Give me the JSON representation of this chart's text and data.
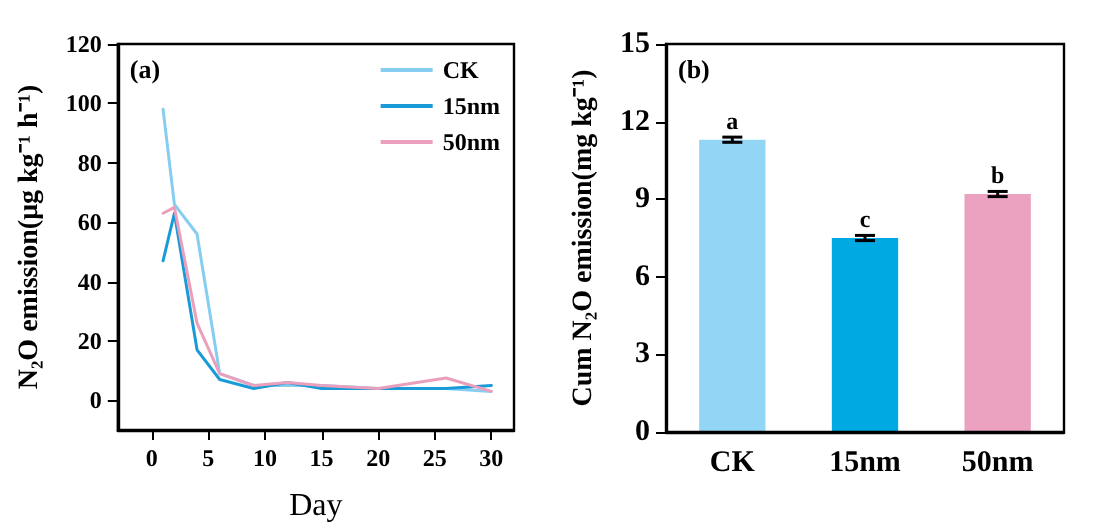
{
  "chart_data": [
    {
      "type": "line",
      "xlabel": "Day",
      "ylabel": "N₂O emission(μg kg⁻¹ h⁻¹)",
      "annotations": [
        "(a)"
      ],
      "x": [
        1,
        2,
        4,
        6,
        9,
        12,
        15,
        20,
        26,
        30
      ],
      "series": [
        {
          "name": "CK",
          "color": "#86cdf0",
          "values": [
            98,
            66,
            56,
            9,
            5,
            5,
            5,
            4,
            4,
            3
          ]
        },
        {
          "name": "15nm",
          "color": "#1a9ad6",
          "values": [
            47,
            63,
            17,
            7,
            4,
            6,
            4,
            4,
            4,
            5
          ]
        },
        {
          "name": "50nm",
          "color": "#eaa0bc",
          "values": [
            63,
            65,
            26,
            9,
            5,
            6,
            5,
            4,
            7.5,
            3
          ]
        }
      ],
      "xlim": [
        -3,
        32
      ],
      "xticks": [
        0,
        5,
        10,
        15,
        20,
        25,
        30
      ],
      "ylim": [
        -10,
        120
      ],
      "yticks": [
        0,
        20,
        40,
        60,
        80,
        100,
        120
      ],
      "grid": false,
      "legend": "top right"
    },
    {
      "type": "bar",
      "ylabel": "Cum N₂O emission(mg kg⁻¹)",
      "categories": [
        "CK",
        "15nm",
        "50nm"
      ],
      "values": [
        11.3,
        7.5,
        9.2
      ],
      "errors": [
        0.1,
        0.1,
        0.1
      ],
      "colors": [
        "#93d5f5",
        "#00a9e2",
        "#eba1c0"
      ],
      "annotations": [
        "(b)",
        {
          "text": "a",
          "x": "CK",
          "y": 11.4
        },
        {
          "text": "c",
          "x": "15nm",
          "y": 7.6
        },
        {
          "text": "b",
          "x": "50nm",
          "y": 9.3
        }
      ],
      "ylim": [
        0,
        15
      ],
      "yticks": [
        0,
        3,
        6,
        9,
        12,
        15
      ],
      "grid": false,
      "legend": false
    }
  ]
}
